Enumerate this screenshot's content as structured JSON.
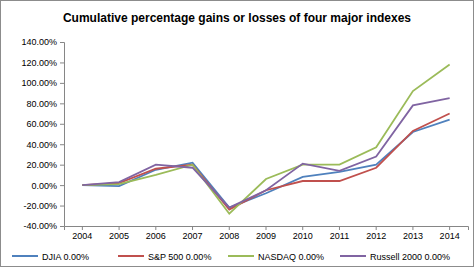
{
  "chart_data": {
    "type": "line",
    "title": "Cumulative percentage gains or losses of four major indexes",
    "categories": [
      "2004",
      "2005",
      "2006",
      "2007",
      "2008",
      "2009",
      "2010",
      "2011",
      "2012",
      "2013",
      "2014"
    ],
    "series": [
      {
        "name": "DJIA 0.00%",
        "color": "#4f81bd",
        "values": [
          0,
          -1,
          15,
          22,
          -22,
          -8,
          8,
          13,
          20,
          52,
          64
        ]
      },
      {
        "name": "S&P 500 0.00%",
        "color": "#c0504d",
        "values": [
          0,
          2,
          16,
          20,
          -24,
          -5,
          4,
          4,
          17,
          53,
          70
        ]
      },
      {
        "name": "NASDAQ 0.00%",
        "color": "#9bbb59",
        "values": [
          0,
          1,
          10,
          20,
          -28,
          6,
          20,
          20,
          37,
          92,
          118
        ]
      },
      {
        "name": "Russell 2000 0.00%",
        "color": "#8064a2",
        "values": [
          0,
          3,
          20,
          17,
          -22,
          -5,
          21,
          14,
          28,
          78,
          85
        ]
      }
    ],
    "ylim": [
      -40,
      140
    ],
    "yticks": [
      {
        "value": -40,
        "label": "-40.00%"
      },
      {
        "value": -20,
        "label": "-20.00%"
      },
      {
        "value": 0,
        "label": "0.00%"
      },
      {
        "value": 20,
        "label": "20.00%"
      },
      {
        "value": 40,
        "label": "40.00%"
      },
      {
        "value": 60,
        "label": "60.00%"
      },
      {
        "value": 80,
        "label": "80.00%"
      },
      {
        "value": 100,
        "label": "100.00%"
      },
      {
        "value": 120,
        "label": "120.00%"
      },
      {
        "value": 140,
        "label": "140.00%"
      }
    ],
    "grid": false,
    "legend": "bottom"
  }
}
